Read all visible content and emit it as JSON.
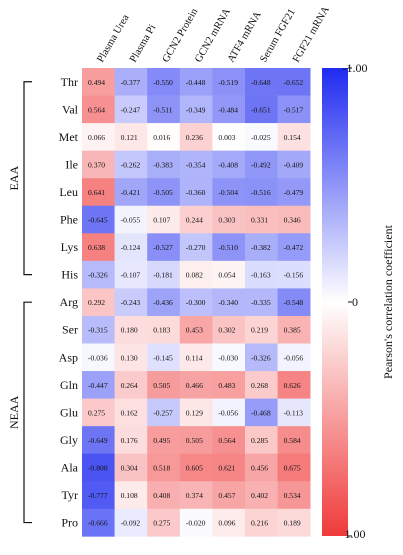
{
  "chart_data": {
    "type": "heatmap",
    "columns": [
      "Plasma Urea",
      "Plasma Pi",
      "GCN2 Protein",
      "GCN2 mRNA",
      "ATF4 mRNA",
      "Serum FGF21",
      "FGF21 mRNA"
    ],
    "rows": [
      "Thr",
      "Val",
      "Met",
      "Ile",
      "Leu",
      "Phe",
      "Lys",
      "His",
      "Arg",
      "Ser",
      "Asp",
      "Gln",
      "Glu",
      "Gly",
      "Ala",
      "Tyr",
      "Pro"
    ],
    "values": [
      [
        0.494,
        -0.377,
        -0.55,
        -0.448,
        -0.519,
        -0.648,
        -0.652
      ],
      [
        0.564,
        -0.247,
        -0.511,
        -0.349,
        -0.484,
        -0.651,
        -0.517
      ],
      [
        0.066,
        0.121,
        0.016,
        0.236,
        0.003,
        -0.025,
        0.154
      ],
      [
        0.37,
        -0.262,
        -0.383,
        -0.354,
        -0.408,
        -0.492,
        -0.409
      ],
      [
        0.641,
        -0.421,
        -0.505,
        -0.36,
        -0.504,
        -0.516,
        -0.479
      ],
      [
        -0.645,
        -0.055,
        0.107,
        0.244,
        0.303,
        0.331,
        0.346
      ],
      [
        0.638,
        -0.124,
        -0.527,
        -0.27,
        -0.51,
        -0.382,
        -0.472
      ],
      [
        -0.326,
        -0.107,
        -0.181,
        0.082,
        0.054,
        -0.163,
        -0.156
      ],
      [
        0.292,
        -0.243,
        -0.436,
        -0.3,
        -0.34,
        -0.335,
        -0.548
      ],
      [
        -0.315,
        0.18,
        0.183,
        0.453,
        0.302,
        0.219,
        0.385
      ],
      [
        -0.036,
        0.13,
        -0.145,
        0.114,
        -0.03,
        -0.326,
        -0.056
      ],
      [
        -0.447,
        0.264,
        0.505,
        0.466,
        0.483,
        0.268,
        0.626
      ],
      [
        0.275,
        0.162,
        -0.257,
        0.129,
        -0.056,
        -0.468,
        -0.113
      ],
      [
        -0.649,
        0.176,
        0.495,
        0.505,
        0.564,
        0.285,
        0.584
      ],
      [
        -0.808,
        0.304,
        0.518,
        0.605,
        0.621,
        0.456,
        0.675
      ],
      [
        -0.777,
        0.108,
        0.408,
        0.374,
        0.457,
        0.402,
        0.534
      ],
      [
        -0.666,
        -0.092,
        0.275,
        -0.02,
        0.096,
        0.216,
        0.189
      ]
    ],
    "groups": [
      {
        "label": "EAA",
        "rows": [
          "Thr",
          "Val",
          "Met",
          "Ile",
          "Leu",
          "Phe",
          "Lys",
          "His"
        ]
      },
      {
        "label": "NEAA",
        "rows": [
          "Arg",
          "Ser",
          "Asp",
          "Gln",
          "Glu",
          "Gly",
          "Ala",
          "Tyr",
          "Pro"
        ]
      }
    ],
    "colorbar": {
      "label": "Pearson's correlation coefficient",
      "ticks": [
        "-1.00",
        "0",
        "1.00"
      ],
      "range": [
        -1,
        1
      ],
      "low_color": "#1f2bf0",
      "mid_color": "#ffffff",
      "high_color": "#f03a3a"
    }
  }
}
